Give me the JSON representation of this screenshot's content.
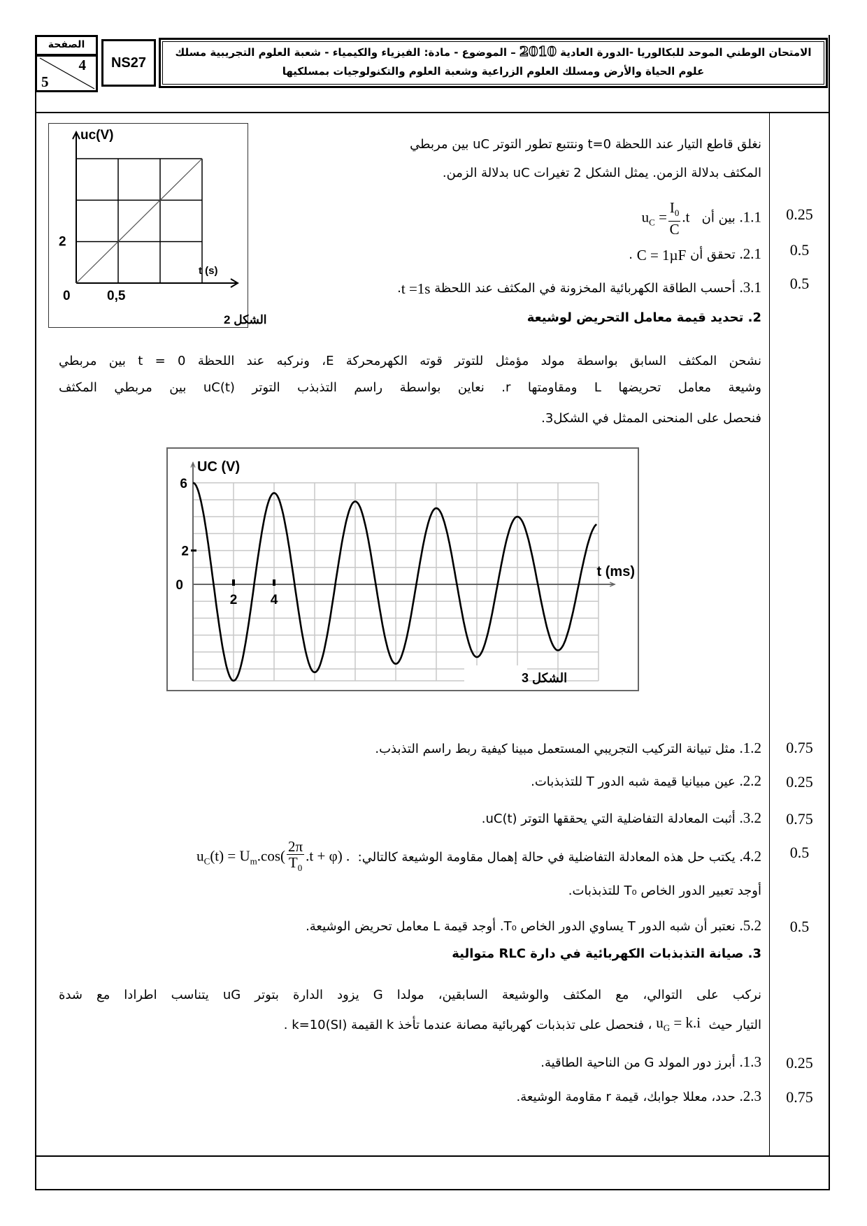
{
  "header": {
    "page_label": "الصفحة",
    "page_num": "4",
    "page_total": "5",
    "code": "NS27",
    "title_a": "الامتحان الوطني الموحد للبكالوريا -الدورة العادية",
    "year": "2010",
    "title_b": "– الموضوع - مادة: الفيزياء والكيمياء - شعبة العلوم التجريبية مسلك",
    "title_line2": "علوم الحياة والأرض ومسلك العلوم الزراعية وشعبة العلوم والتكنولوجيات بمسلكيها"
  },
  "part1": {
    "intro_l1": "نغلق قاطع التيار عند اللحظة t=0 ونتتبع تطور التوتر uC بين مربطي",
    "intro_l2": "المكثف بدلالة الزمن. يمثل الشكل 2 تغيرات uC بدلالة الزمن.",
    "q11": {
      "num": "1.1.",
      "text": "بين أن",
      "lhs": "u",
      "lhs_sub": "C",
      "eq": "=",
      "frac_num": "I",
      "frac_num_sub": "0",
      "frac_den": "C",
      "tail": ".t",
      "score": "0.25"
    },
    "q21": {
      "num": "2.1.",
      "text": "تحقق أن",
      "formula": "C = 1µF",
      "end": ".",
      "score": "0.5"
    },
    "q31": {
      "num": "3.1.",
      "text": "أحسب الطاقة الكهربائية المخزونة في المكثف عند اللحظة",
      "formula": "t =1s",
      "end": ".",
      "score": "0.5"
    }
  },
  "part2": {
    "heading": "2. تحديد قيمة معامل التحريض لوشيعة",
    "p_l1": "نشحن المكثف السابق بواسطة مولد مؤمثل للتوتر قوته الكهرمحركة E، ونركبه عند اللحظة t = 0 بين مربطي",
    "p_l2": "وشيعة معامل تحريضها L ومقاومتها r. نعاين بواسطة راسم التذبذب التوتر uC(t) بين مربطي المكثف",
    "p_l3": "فنحصل على المنحنى الممثل في الشكل3.",
    "q12": {
      "num": "1.2.",
      "text": "مثل تبيانة التركيب التجريبي المستعمل مبينا كيفية ربط راسم التذبذب.",
      "score": "0.75"
    },
    "q22": {
      "num": "2.2.",
      "text": "عين مبيانيا قيمة شبه الدور T للتذبذبات.",
      "score": "0.25"
    },
    "q32": {
      "num": "3.2.",
      "text": "أثبت المعادلة التفاضلية التي يحققها التوتر uC(t).",
      "score": "0.75"
    },
    "q42": {
      "num": "4.2.",
      "text": "يكتب حل هذه المعادلة التفاضلية في حالة إهمال مقاومة الوشيعة كالتالي:",
      "f_a": "u",
      "f_a_sub": "C",
      "f_b": "(t) = U",
      "f_b_sub": "m",
      "f_c": ".cos(",
      "frac_num": "2π",
      "frac_den": "T",
      "frac_den_sub": "0",
      "f_d": ".t + φ)",
      "end": ".",
      "score": "0.5"
    },
    "q42_cont": "أوجد تعبير الدور الخاص T₀ للتذبذبات.",
    "q52": {
      "num": "5.2.",
      "text": "نعتبر أن شبه الدور T يساوي الدور الخاص T₀. أوجد قيمة L معامل تحريض الوشيعة.",
      "score": "0.5"
    }
  },
  "part3": {
    "heading": "3. صيانة التذبذبات الكهربائية في دارة RLC متوالية",
    "p_l1": "نركب على التوالي، مع المكثف والوشيعة السابقين، مولدا G يزود الدارة بتوتر uG يتناسب اطرادا مع شدة",
    "p_l2_a": "التيار حيث",
    "p_l2_f": "u",
    "p_l2_f_sub": "G",
    "p_l2_f2": " = k.i",
    "p_l2_b": "، فنحصل على تذبذبات كهربائية مصانة عندما تأخذ k القيمة k=10(SI) .",
    "q13": {
      "num": "1.3.",
      "text": "أبرز دور المولد G من الناحية الطاقية.",
      "score": "0.25"
    },
    "q23": {
      "num": "2.3.",
      "text": "حدد، معللا جوابك، قيمة r مقاومة الوشيعة.",
      "score": "0.75"
    }
  },
  "chart_data": [
    {
      "type": "line",
      "title": "الشكل 2",
      "ylabel": "uc(V)",
      "xlabel": "t (s)",
      "x_tick_labels": [
        "0",
        "0,5"
      ],
      "y_tick_labels": [
        "2"
      ],
      "xlim": [
        0,
        1.5
      ],
      "ylim": [
        0,
        6
      ],
      "grid": true,
      "x": [
        0,
        1.5
      ],
      "y": [
        0,
        6
      ]
    },
    {
      "type": "line",
      "title": "الشكل 3",
      "ylabel": "UC (V)",
      "xlabel": "t (ms)",
      "x_tick_labels": [
        "2",
        "4"
      ],
      "y_tick_labels": [
        "6",
        "2",
        "0"
      ],
      "xlim": [
        0,
        20
      ],
      "ylim": [
        -5.7,
        6
      ],
      "grid": true,
      "extrema_t": [
        0,
        2,
        4,
        6,
        8,
        10,
        12,
        14,
        16,
        18,
        20
      ],
      "extrema_u": [
        6,
        -5.7,
        5.4,
        -5.2,
        4.9,
        -4.7,
        4.5,
        -4.3,
        4.0,
        -3.9,
        3.6
      ]
    }
  ]
}
